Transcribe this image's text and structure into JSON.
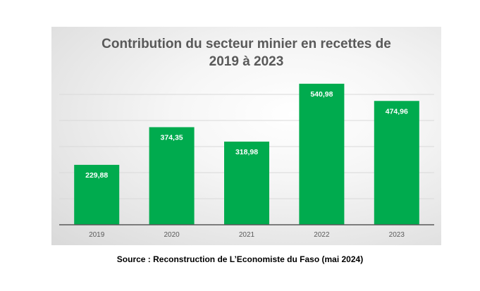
{
  "chart_data": {
    "type": "bar",
    "title_line1": "Contribution du secteur minier en recettes de",
    "title_line2": "2019 à 2023",
    "categories": [
      "2019",
      "2020",
      "2021",
      "2022",
      "2023"
    ],
    "values": [
      229.88,
      374.35,
      318.98,
      540.98,
      474.96
    ],
    "labels": [
      "229,88",
      "374,35",
      "318,98",
      "540,98",
      "474,96"
    ],
    "ylim": [
      0,
      500
    ],
    "gridlines": [
      100,
      200,
      300,
      400,
      500
    ],
    "grid": true,
    "bar_color": "#00ab4e"
  },
  "source": "Source : Reconstruction de L’Economiste du Faso (mai 2024)"
}
